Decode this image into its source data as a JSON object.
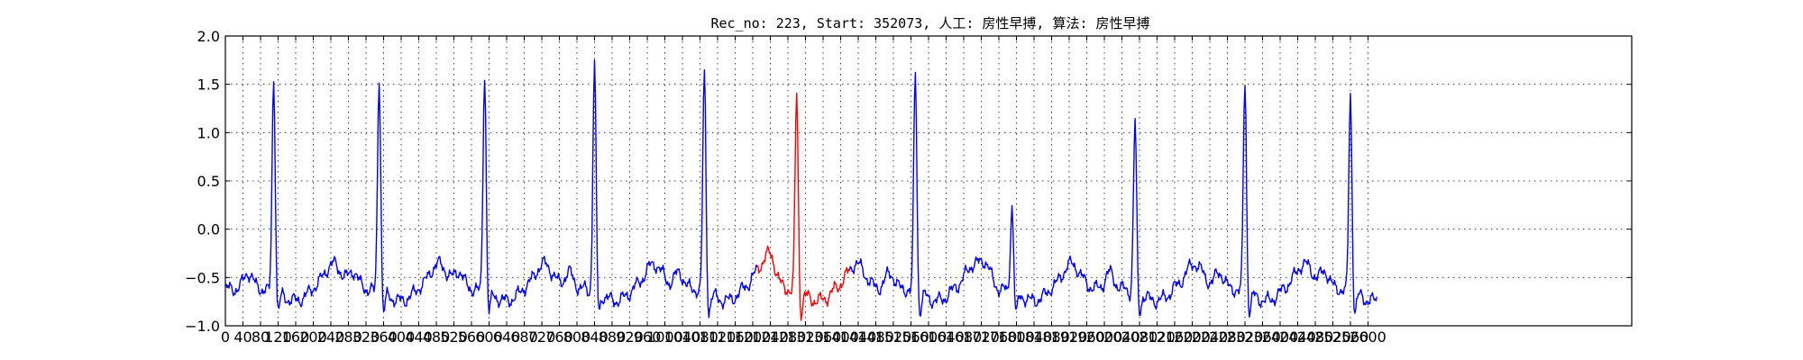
{
  "chart_data": {
    "type": "line",
    "title": "Rec_no: 223, Start: 352073, 人工: 房性早搏, 算法: 房性早搏",
    "xlabel": "",
    "ylabel": "",
    "xlim": [
      0,
      3200
    ],
    "ylim": [
      -1.0,
      2.0
    ],
    "grid": true,
    "y_ticks": [
      -1.0,
      -0.5,
      0.0,
      0.5,
      1.0,
      1.5,
      2.0
    ],
    "y_tick_labels": [
      "−1.0",
      "−0.5",
      "0.0",
      "0.5",
      "1.0",
      "1.5",
      "2.0"
    ],
    "x_ticks": [
      0,
      40,
      80,
      120,
      160,
      200,
      240,
      280,
      320,
      360,
      400,
      440,
      480,
      520,
      560,
      600,
      640,
      680,
      720,
      760,
      800,
      840,
      880,
      920,
      960,
      1000,
      1040,
      1080,
      1120,
      1160,
      1200,
      1240,
      1280,
      1320,
      1360,
      1400,
      1440,
      1480,
      1520,
      1560,
      1600,
      1640,
      1680,
      1720,
      1760,
      1800,
      1840,
      1880,
      1920,
      1960,
      2000,
      2040,
      2080,
      2120,
      2160,
      2200,
      2240,
      2280,
      2320,
      2360,
      2400,
      2440,
      2480,
      2520,
      2560,
      2600
    ],
    "x_tick_labels": [
      "0",
      "40",
      "80",
      "120",
      "160",
      "200",
      "240",
      "280",
      "320",
      "360",
      "400",
      "440",
      "480",
      "520",
      "560",
      "600",
      "640",
      "680",
      "720",
      "760",
      "800",
      "840",
      "880",
      "920",
      "960",
      "1000",
      "1040",
      "1080",
      "1120",
      "1160",
      "1200",
      "1240",
      "1280",
      "1320",
      "1360",
      "1400",
      "1440",
      "1480",
      "1520",
      "1560",
      "1600",
      "1640",
      "1680",
      "1720",
      "1760",
      "1800",
      "1840",
      "1880",
      "1920",
      "1960",
      "2000",
      "2040",
      "2080",
      "2120",
      "2160",
      "2200",
      "2240",
      "2280",
      "2320",
      "2360",
      "2400",
      "2440",
      "2480",
      "2520",
      "2560",
      "2600"
    ],
    "series": [
      {
        "color": "#0000ff",
        "x_range": [
          0,
          1210
        ],
        "role": "normal"
      },
      {
        "color": "#ff0000",
        "x_range": [
          1210,
          1420
        ],
        "role": "highlighted"
      },
      {
        "color": "#0000ff",
        "x_range": [
          1420,
          2620
        ],
        "role": "normal"
      }
    ],
    "beats": [
      {
        "x": 110,
        "peak": 1.63,
        "color": "blue"
      },
      {
        "x": 350,
        "peak": 1.63,
        "color": "blue"
      },
      {
        "x": 590,
        "peak": 1.67,
        "color": "blue"
      },
      {
        "x": 840,
        "peak": 1.76,
        "color": "blue"
      },
      {
        "x": 1090,
        "peak": 1.68,
        "color": "blue"
      },
      {
        "x": 1300,
        "peak": 1.47,
        "color": "red"
      },
      {
        "x": 1570,
        "peak": 1.68,
        "color": "blue"
      },
      {
        "x": 1790,
        "peak": 0.3,
        "color": "blue"
      },
      {
        "x": 2070,
        "peak": 1.17,
        "color": "blue"
      },
      {
        "x": 2320,
        "peak": 1.59,
        "color": "blue"
      },
      {
        "x": 2560,
        "peak": 1.44,
        "color": "blue"
      }
    ]
  }
}
